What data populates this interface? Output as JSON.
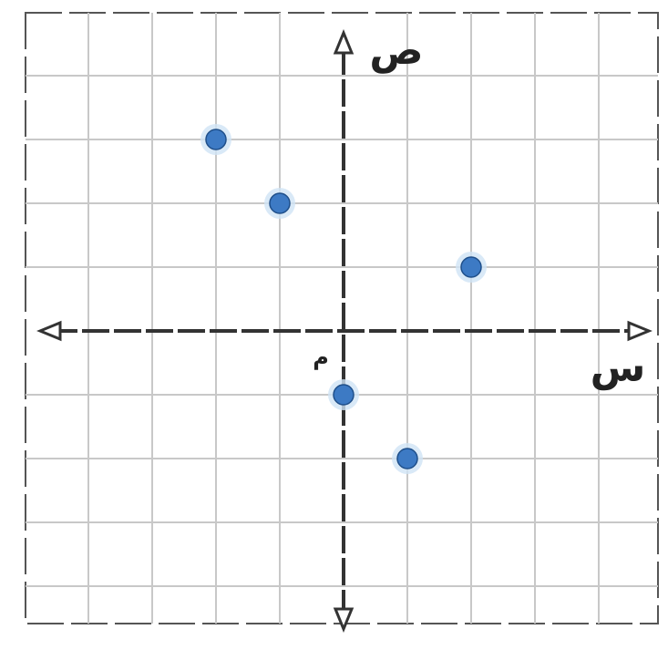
{
  "chart_data": {
    "type": "scatter",
    "xlabel": "س",
    "ylabel": "ص",
    "origin_label": "م",
    "xlim": [
      -5,
      5
    ],
    "ylim": [
      -5,
      5
    ],
    "grid": true,
    "points": [
      {
        "x": -2,
        "y": 3
      },
      {
        "x": -1,
        "y": 2
      },
      {
        "x": 2,
        "y": 1
      },
      {
        "x": 0,
        "y": -1
      },
      {
        "x": 1,
        "y": -2
      }
    ]
  },
  "colors": {
    "point": "#3d7ac4",
    "point_halo": "#cfe3f5",
    "grid": "#c8c8c8",
    "axis": "#333333",
    "frame": "#555555"
  }
}
